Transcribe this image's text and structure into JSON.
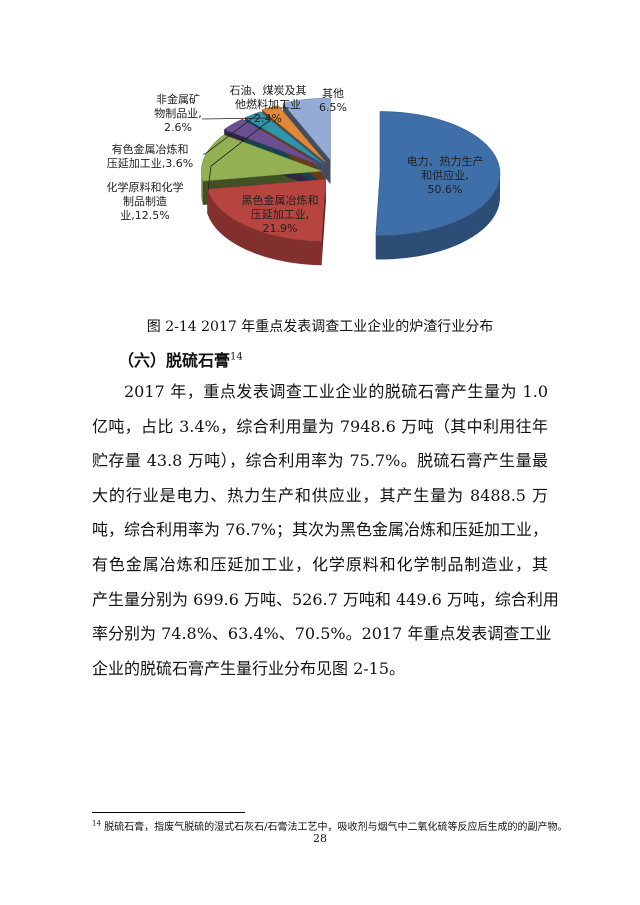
{
  "chart_data": {
    "type": "pie",
    "style": "3d-exploded",
    "slices": [
      {
        "label_lines": [
          "电力、热力生产",
          "和供应业,",
          "50.6%"
        ],
        "name": "电力、热力生产和供应业",
        "value": 50.6,
        "color": "#3f6fa8"
      },
      {
        "label_lines": [
          "黑色金属冶炼和",
          "压延加工业,",
          "21.9%"
        ],
        "name": "黑色金属冶炼和压延加工业",
        "value": 21.9,
        "color": "#b84440"
      },
      {
        "label_lines": [
          "化学原料和化学",
          "制品制造",
          "业,12.5%"
        ],
        "name": "化学原料和化学制品制造业",
        "value": 12.5,
        "color": "#93b152"
      },
      {
        "label_lines": [
          "有色金属冶炼和",
          "压延加工业,3.6%"
        ],
        "name": "有色金属冶炼和压延加工业",
        "value": 3.6,
        "color": "#6b4f91"
      },
      {
        "label_lines": [
          "非金属矿",
          "物制品业,",
          "2.6%"
        ],
        "name": "非金属矿物制品业",
        "value": 2.6,
        "color": "#2f95ad"
      },
      {
        "label_lines": [
          "石油、煤炭及其",
          "他燃料加工业",
          "2.4%"
        ],
        "name": "石油、煤炭及其他燃料加工业",
        "value": 2.4,
        "color": "#e08a37"
      },
      {
        "label_lines": [
          "其他",
          "6.5%"
        ],
        "name": "其他",
        "value": 6.5,
        "color": "#94acd4"
      }
    ]
  },
  "caption": "图 2-14 2017 年重点发表调查工业企业的炉渣行业分布",
  "section": {
    "title": "（六）脱硫石膏",
    "footnote_ref": "14"
  },
  "body_lines": [
    "2017 年，重点发表调查工业企业的脱硫石膏产生量为 1.0",
    "亿吨，占比 3.4%，综合利用量为 7948.6 万吨（其中利用往年",
    "贮存量 43.8 万吨），综合利用率为 75.7%。脱硫石膏产生量最",
    "大的行业是电力、热力生产和供应业，其产生量为 8488.5 万",
    "吨，综合利用率为 76.7%；其次为黑色金属冶炼和压延加工业，",
    "有色金属冶炼和压延加工业，化学原料和化学制品制造业，其",
    "产生量分别为 699.6 万吨、526.7 万吨和 449.6 万吨，综合利用",
    "率分别为 74.8%、63.4%、70.5%。2017 年重点发表调查工业",
    "企业的脱硫石膏产生量行业分布见图 2-15。"
  ],
  "footnote": {
    "number": "14",
    "text": "脱硫石膏，指废气脱硫的湿式石灰石/石膏法工艺中，吸收剂与烟气中二氧化硫等反应后生成的的副产物。"
  },
  "page_number": "28"
}
